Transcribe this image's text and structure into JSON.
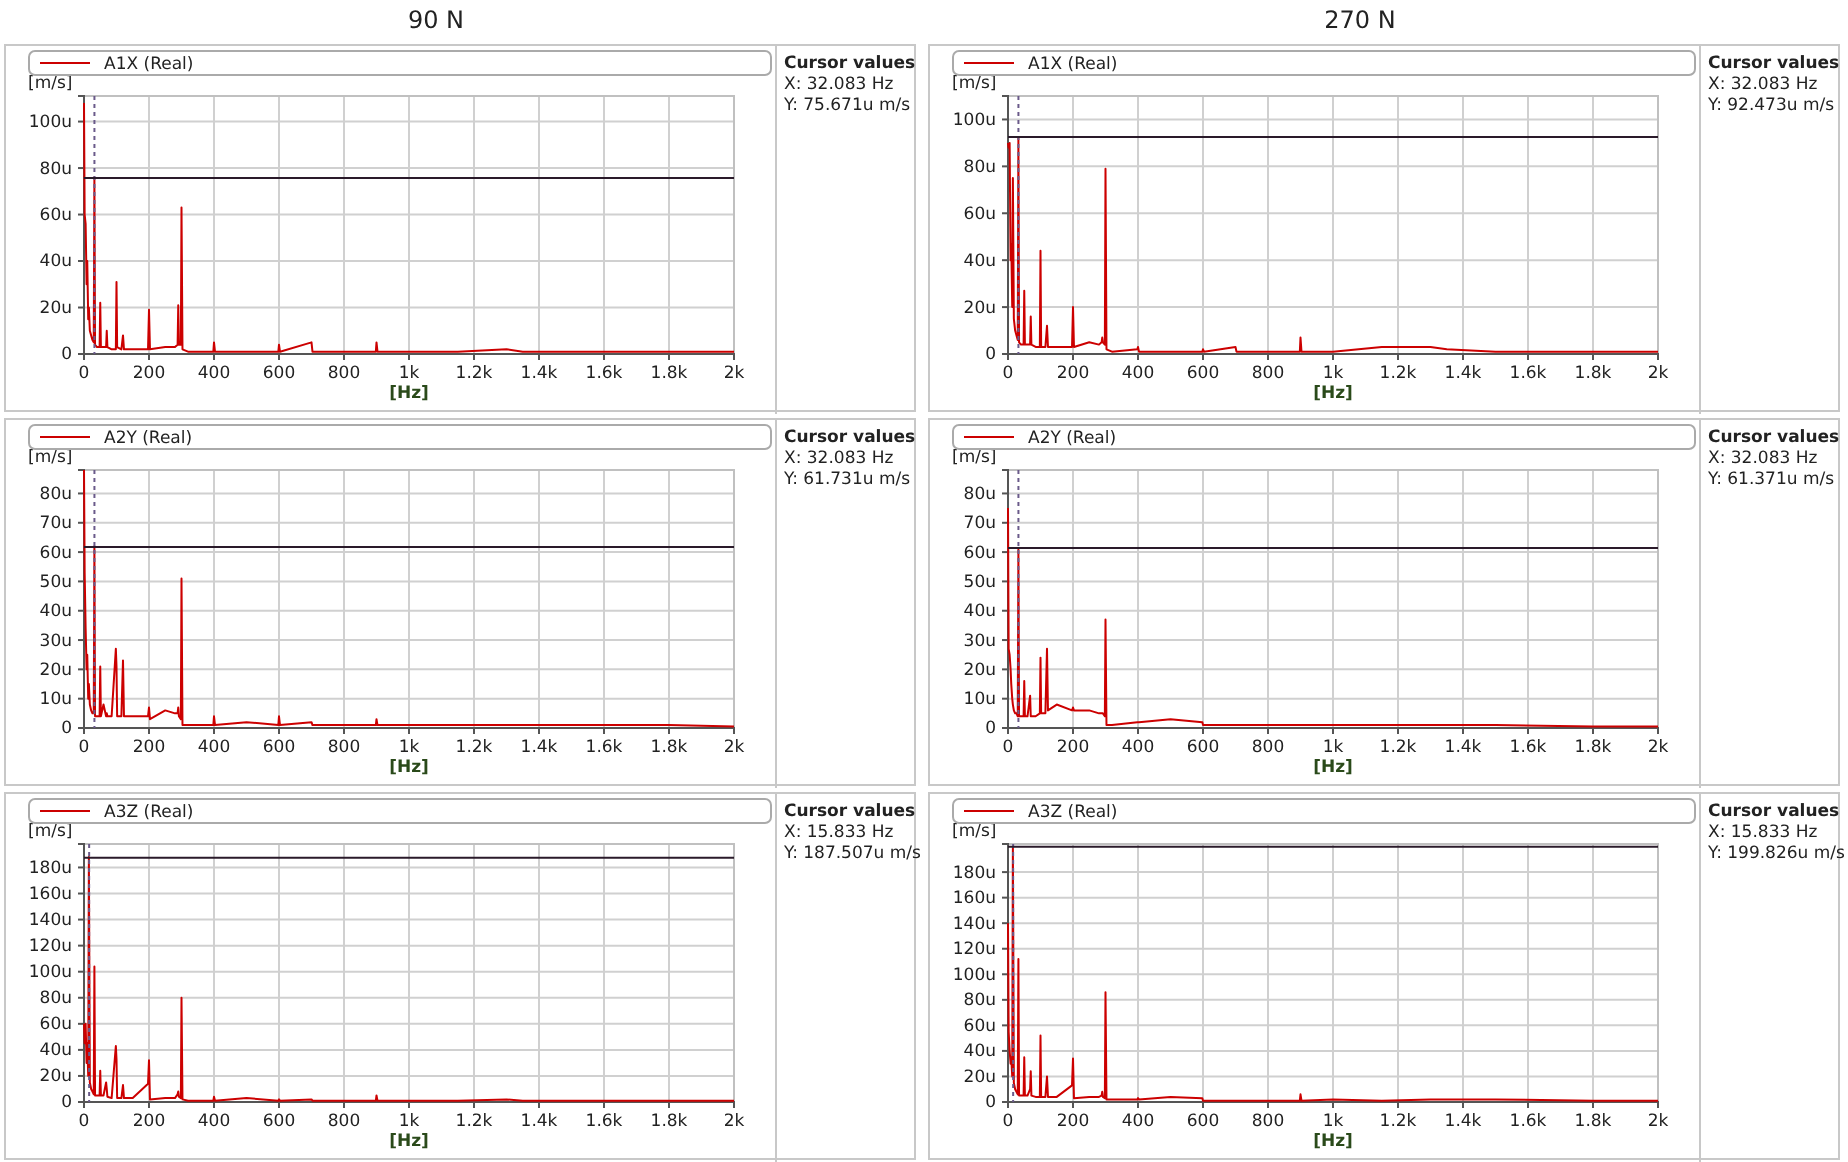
{
  "chart_data": [
    {
      "type": "line",
      "title": "90 N",
      "xlabel": "[Hz]",
      "ylabel": "[m/s]",
      "legend": "top",
      "grid": true,
      "x": [
        0,
        2,
        5,
        8,
        10,
        13,
        15,
        18,
        22,
        26,
        30,
        32,
        34,
        40,
        48,
        50,
        52,
        60,
        68,
        70,
        72,
        85,
        98,
        100,
        102,
        115,
        120,
        123,
        150,
        197,
        200,
        203,
        250,
        280,
        288,
        290,
        292,
        298,
        300,
        303,
        320,
        398,
        400,
        403,
        500,
        598,
        600,
        603,
        700,
        703,
        898,
        900,
        903,
        1000,
        1150,
        1300,
        1350,
        1500,
        1800,
        2000
      ],
      "series": [
        {
          "name": "A1X (Real)",
          "color": "#cc0000",
          "values": [
            108,
            60,
            56,
            30,
            40,
            15,
            20,
            10,
            8,
            6,
            5,
            76,
            4,
            3,
            3,
            22,
            3,
            3,
            3,
            10,
            3,
            2,
            2,
            31,
            3,
            2,
            8,
            2,
            2,
            2,
            19,
            2,
            3,
            3,
            4,
            21,
            4,
            4,
            63,
            2,
            1,
            1,
            5,
            1,
            1,
            1,
            4,
            1,
            5,
            1,
            1,
            5,
            1,
            1,
            1,
            2,
            1,
            1,
            1,
            1
          ]
        }
      ],
      "xlim": [
        0,
        2000
      ],
      "xticks": [
        0,
        200,
        400,
        600,
        800,
        {
          "value": 1000,
          "label": "1k"
        },
        {
          "value": 1200,
          "label": "1.2k"
        },
        {
          "value": 1400,
          "label": "1.4k"
        },
        {
          "value": 1600,
          "label": "1.6k"
        },
        {
          "value": 1800,
          "label": "1.8k"
        },
        {
          "value": 2000,
          "label": "2k"
        }
      ],
      "ylim": [
        0,
        111
      ],
      "yticks": [
        {
          "value": 0,
          "label": "0"
        },
        {
          "value": 20,
          "label": "20u"
        },
        {
          "value": 40,
          "label": "40u"
        },
        {
          "value": 60,
          "label": "60u"
        },
        {
          "value": 80,
          "label": "80u"
        },
        {
          "value": 100,
          "label": "100u"
        }
      ],
      "ref_lines": [
        {
          "axis": "x",
          "value": 32.083,
          "line_style": "dotted",
          "color": "#6a5a8a"
        },
        {
          "axis": "y",
          "value": 75.671,
          "color": "#2a1a2a"
        }
      ],
      "annotations": [
        "Cursor values",
        "X: 32.083 Hz",
        "Y: 75.671u m/s"
      ]
    },
    {
      "type": "line",
      "title": "270 N",
      "xlabel": "[Hz]",
      "ylabel": "[m/s]",
      "legend": "top",
      "grid": true,
      "x": [
        0,
        2,
        5,
        8,
        10,
        13,
        15,
        18,
        22,
        26,
        30,
        32,
        34,
        40,
        48,
        50,
        52,
        60,
        68,
        70,
        72,
        85,
        98,
        100,
        102,
        115,
        120,
        123,
        150,
        197,
        200,
        203,
        250,
        280,
        288,
        290,
        292,
        298,
        300,
        303,
        320,
        398,
        400,
        403,
        500,
        598,
        600,
        603,
        700,
        703,
        898,
        900,
        903,
        1000,
        1150,
        1300,
        1350,
        1500,
        1800,
        2000
      ],
      "series": [
        {
          "name": "A1X (Real)",
          "color": "#cc0000",
          "values": [
            90,
            88,
            90,
            40,
            47,
            20,
            75,
            15,
            10,
            8,
            6,
            92,
            5,
            4,
            4,
            27,
            4,
            4,
            4,
            16,
            4,
            3,
            3,
            44,
            3,
            3,
            12,
            3,
            3,
            3,
            20,
            3,
            5,
            4,
            5,
            7,
            5,
            4,
            79,
            2,
            1,
            2,
            3,
            1,
            1,
            1,
            2,
            1,
            3,
            1,
            1,
            7,
            1,
            1,
            3,
            3,
            2,
            1,
            1,
            1
          ]
        }
      ],
      "xlim": [
        0,
        2000
      ],
      "xticks": [
        0,
        200,
        400,
        600,
        800,
        {
          "value": 1000,
          "label": "1k"
        },
        {
          "value": 1200,
          "label": "1.2k"
        },
        {
          "value": 1400,
          "label": "1.4k"
        },
        {
          "value": 1600,
          "label": "1.6k"
        },
        {
          "value": 1800,
          "label": "1.8k"
        },
        {
          "value": 2000,
          "label": "2k"
        }
      ],
      "ylim": [
        0,
        110
      ],
      "yticks": [
        {
          "value": 0,
          "label": "0"
        },
        {
          "value": 20,
          "label": "20u"
        },
        {
          "value": 40,
          "label": "40u"
        },
        {
          "value": 60,
          "label": "60u"
        },
        {
          "value": 80,
          "label": "80u"
        },
        {
          "value": 100,
          "label": "100u"
        }
      ],
      "ref_lines": [
        {
          "axis": "x",
          "value": 32.083,
          "line_style": "dotted",
          "color": "#6a5a8a"
        },
        {
          "axis": "y",
          "value": 92.473,
          "color": "#2a1a2a"
        }
      ],
      "annotations": [
        "Cursor values",
        "X: 32.083 Hz",
        "Y: 92.473u m/s"
      ]
    },
    {
      "type": "line",
      "xlabel": "[Hz]",
      "ylabel": "[m/s]",
      "legend": "top",
      "grid": true,
      "x": [
        0,
        2,
        5,
        8,
        10,
        13,
        15,
        18,
        22,
        26,
        30,
        32,
        34,
        40,
        48,
        50,
        52,
        60,
        68,
        70,
        72,
        85,
        98,
        100,
        102,
        115,
        120,
        123,
        150,
        197,
        200,
        203,
        250,
        280,
        288,
        290,
        292,
        298,
        300,
        303,
        320,
        398,
        400,
        403,
        500,
        598,
        600,
        603,
        700,
        703,
        898,
        900,
        903,
        1000,
        1150,
        1300,
        1350,
        1500,
        1800,
        2000
      ],
      "series": [
        {
          "name": "A2Y (Real)",
          "color": "#cc0000",
          "values": [
            88,
            53,
            34,
            20,
            25,
            10,
            15,
            8,
            6,
            5,
            5,
            62,
            4,
            4,
            4,
            21,
            4,
            8,
            4,
            5,
            4,
            4,
            27,
            21,
            4,
            4,
            23,
            4,
            4,
            4,
            7,
            3,
            6,
            5,
            5,
            7,
            4,
            3,
            51,
            1,
            1,
            1,
            4,
            1,
            2,
            1,
            4,
            1,
            2,
            1,
            1,
            3,
            1,
            1,
            1,
            1,
            1,
            1,
            1,
            0.5
          ]
        }
      ],
      "xlim": [
        0,
        2000
      ],
      "xticks": [
        0,
        200,
        400,
        600,
        800,
        {
          "value": 1000,
          "label": "1k"
        },
        {
          "value": 1200,
          "label": "1.2k"
        },
        {
          "value": 1400,
          "label": "1.4k"
        },
        {
          "value": 1600,
          "label": "1.6k"
        },
        {
          "value": 1800,
          "label": "1.8k"
        },
        {
          "value": 2000,
          "label": "2k"
        }
      ],
      "ylim": [
        0,
        88
      ],
      "yticks": [
        {
          "value": 0,
          "label": "0"
        },
        {
          "value": 10,
          "label": "10u"
        },
        {
          "value": 20,
          "label": "20u"
        },
        {
          "value": 30,
          "label": "30u"
        },
        {
          "value": 40,
          "label": "40u"
        },
        {
          "value": 50,
          "label": "50u"
        },
        {
          "value": 60,
          "label": "60u"
        },
        {
          "value": 70,
          "label": "70u"
        },
        {
          "value": 80,
          "label": "80u"
        }
      ],
      "ref_lines": [
        {
          "axis": "x",
          "value": 32.083,
          "line_style": "dotted",
          "color": "#6a5a8a"
        },
        {
          "axis": "y",
          "value": 61.731,
          "color": "#2a1a2a"
        }
      ],
      "annotations": [
        "Cursor values",
        "X: 32.083 Hz",
        "Y: 61.731u m/s"
      ]
    },
    {
      "type": "line",
      "xlabel": "[Hz]",
      "ylabel": "[m/s]",
      "legend": "top",
      "grid": true,
      "x": [
        0,
        2,
        5,
        8,
        10,
        13,
        15,
        18,
        22,
        26,
        30,
        32,
        34,
        40,
        48,
        50,
        52,
        60,
        68,
        70,
        72,
        85,
        98,
        100,
        102,
        115,
        120,
        123,
        150,
        197,
        200,
        203,
        250,
        280,
        288,
        290,
        292,
        298,
        300,
        303,
        320,
        398,
        400,
        403,
        500,
        598,
        600,
        603,
        700,
        703,
        898,
        900,
        903,
        1000,
        1150,
        1300,
        1350,
        1500,
        1800,
        2000
      ],
      "series": [
        {
          "name": "A2Y (Real)",
          "color": "#cc0000",
          "values": [
            75,
            27,
            25,
            20,
            15,
            10,
            8,
            6,
            5,
            5,
            4,
            61,
            4,
            4,
            4,
            16,
            4,
            4,
            11,
            4,
            4,
            4,
            5,
            24,
            5,
            5,
            27,
            6,
            8,
            6,
            7,
            6,
            6,
            5,
            5,
            5,
            5,
            4,
            37,
            1,
            1,
            2,
            2,
            2,
            3,
            2,
            1,
            1,
            1,
            1,
            1,
            1,
            1,
            1,
            1,
            1,
            1,
            1,
            0.5,
            0.5
          ]
        }
      ],
      "xlim": [
        0,
        2000
      ],
      "xticks": [
        0,
        200,
        400,
        600,
        800,
        {
          "value": 1000,
          "label": "1k"
        },
        {
          "value": 1200,
          "label": "1.2k"
        },
        {
          "value": 1400,
          "label": "1.4k"
        },
        {
          "value": 1600,
          "label": "1.6k"
        },
        {
          "value": 1800,
          "label": "1.8k"
        },
        {
          "value": 2000,
          "label": "2k"
        }
      ],
      "ylim": [
        0,
        88
      ],
      "yticks": [
        {
          "value": 0,
          "label": "0"
        },
        {
          "value": 10,
          "label": "10u"
        },
        {
          "value": 20,
          "label": "20u"
        },
        {
          "value": 30,
          "label": "30u"
        },
        {
          "value": 40,
          "label": "40u"
        },
        {
          "value": 50,
          "label": "50u"
        },
        {
          "value": 60,
          "label": "60u"
        },
        {
          "value": 70,
          "label": "70u"
        },
        {
          "value": 80,
          "label": "80u"
        }
      ],
      "ref_lines": [
        {
          "axis": "x",
          "value": 32.083,
          "line_style": "dotted",
          "color": "#6a5a8a"
        },
        {
          "axis": "y",
          "value": 61.371,
          "color": "#2a1a2a"
        }
      ],
      "annotations": [
        "Cursor values",
        "X: 32.083 Hz",
        "Y: 61.371u m/s"
      ]
    },
    {
      "type": "line",
      "xlabel": "[Hz]",
      "ylabel": "[m/s]",
      "legend": "top",
      "grid": true,
      "x": [
        0,
        2,
        5,
        8,
        10,
        13,
        15,
        18,
        22,
        26,
        30,
        32,
        34,
        40,
        48,
        50,
        52,
        60,
        68,
        70,
        72,
        85,
        98,
        100,
        102,
        115,
        120,
        123,
        150,
        197,
        200,
        203,
        250,
        280,
        288,
        290,
        292,
        298,
        300,
        303,
        320,
        398,
        400,
        403,
        500,
        598,
        600,
        603,
        700,
        703,
        898,
        900,
        903,
        1000,
        1150,
        1300,
        1350,
        1500,
        1800,
        2000
      ],
      "series": [
        {
          "name": "A3Z (Real)",
          "color": "#cc0000",
          "values": [
            60,
            45,
            60,
            30,
            45,
            20,
            188,
            15,
            10,
            8,
            6,
            104,
            5,
            5,
            5,
            24,
            5,
            5,
            15,
            10,
            4,
            3,
            43,
            33,
            3,
            3,
            13,
            3,
            3,
            14,
            32,
            2,
            3,
            3,
            6,
            8,
            4,
            3,
            80,
            2,
            1,
            1,
            4,
            1,
            3,
            1,
            2,
            1,
            2,
            1,
            1,
            5,
            1,
            1,
            1,
            2,
            1,
            1,
            1,
            1
          ]
        }
      ],
      "xlim": [
        0,
        2000
      ],
      "xticks": [
        0,
        200,
        400,
        600,
        800,
        {
          "value": 1000,
          "label": "1k"
        },
        {
          "value": 1200,
          "label": "1.2k"
        },
        {
          "value": 1400,
          "label": "1.4k"
        },
        {
          "value": 1600,
          "label": "1.6k"
        },
        {
          "value": 1800,
          "label": "1.8k"
        },
        {
          "value": 2000,
          "label": "2k"
        }
      ],
      "ylim": [
        0,
        198
      ],
      "yticks": [
        {
          "value": 0,
          "label": "0"
        },
        {
          "value": 20,
          "label": "20u"
        },
        {
          "value": 40,
          "label": "40u"
        },
        {
          "value": 60,
          "label": "60u"
        },
        {
          "value": 80,
          "label": "80u"
        },
        {
          "value": 100,
          "label": "100u"
        },
        {
          "value": 120,
          "label": "120u"
        },
        {
          "value": 140,
          "label": "140u"
        },
        {
          "value": 160,
          "label": "160u"
        },
        {
          "value": 180,
          "label": "180u"
        }
      ],
      "ref_lines": [
        {
          "axis": "x",
          "value": 15.833,
          "line_style": "dotted",
          "color": "#6a5a8a"
        },
        {
          "axis": "y",
          "value": 187.507,
          "color": "#2a1a2a"
        }
      ],
      "annotations": [
        "Cursor values",
        "X: 15.833 Hz",
        "Y: 187.507u m/s"
      ]
    },
    {
      "type": "line",
      "xlabel": "[Hz]",
      "ylabel": "[m/s]",
      "legend": "top",
      "grid": true,
      "x": [
        0,
        2,
        5,
        8,
        10,
        13,
        15,
        18,
        22,
        26,
        30,
        32,
        34,
        40,
        48,
        50,
        52,
        60,
        68,
        70,
        72,
        85,
        98,
        100,
        102,
        115,
        120,
        123,
        150,
        197,
        200,
        203,
        250,
        280,
        288,
        290,
        292,
        298,
        300,
        303,
        320,
        398,
        400,
        403,
        500,
        598,
        600,
        603,
        700,
        703,
        898,
        900,
        903,
        1000,
        1150,
        1300,
        1350,
        1500,
        1800,
        2000
      ],
      "series": [
        {
          "name": "A3Z (Real)",
          "color": "#cc0000",
          "values": [
            140,
            55,
            40,
            30,
            35,
            20,
            199,
            15,
            10,
            8,
            6,
            112,
            5,
            5,
            5,
            35,
            5,
            5,
            10,
            24,
            5,
            4,
            4,
            52,
            4,
            4,
            20,
            4,
            4,
            13,
            34,
            3,
            4,
            4,
            5,
            8,
            4,
            3,
            86,
            2,
            2,
            2,
            3,
            2,
            4,
            3,
            1,
            1,
            1,
            1,
            1,
            6,
            1,
            2,
            1,
            2,
            2,
            2,
            1,
            1
          ]
        }
      ],
      "xlim": [
        0,
        2000
      ],
      "xticks": [
        0,
        200,
        400,
        600,
        800,
        {
          "value": 1000,
          "label": "1k"
        },
        {
          "value": 1200,
          "label": "1.2k"
        },
        {
          "value": 1400,
          "label": "1.4k"
        },
        {
          "value": 1600,
          "label": "1.6k"
        },
        {
          "value": 1800,
          "label": "1.8k"
        },
        {
          "value": 2000,
          "label": "2k"
        }
      ],
      "ylim": [
        0,
        202
      ],
      "yticks": [
        {
          "value": 0,
          "label": "0"
        },
        {
          "value": 20,
          "label": "20u"
        },
        {
          "value": 40,
          "label": "40u"
        },
        {
          "value": 60,
          "label": "60u"
        },
        {
          "value": 80,
          "label": "80u"
        },
        {
          "value": 100,
          "label": "100u"
        },
        {
          "value": 120,
          "label": "120u"
        },
        {
          "value": 140,
          "label": "140u"
        },
        {
          "value": 160,
          "label": "160u"
        },
        {
          "value": 180,
          "label": "180u"
        }
      ],
      "ref_lines": [
        {
          "axis": "x",
          "value": 15.833,
          "line_style": "dotted",
          "color": "#6a5a8a"
        },
        {
          "axis": "y",
          "value": 199.826,
          "color": "#2a1a2a"
        }
      ],
      "annotations": [
        "Cursor values",
        "X: 15.833 Hz",
        "Y: 199.826u m/s"
      ]
    }
  ]
}
